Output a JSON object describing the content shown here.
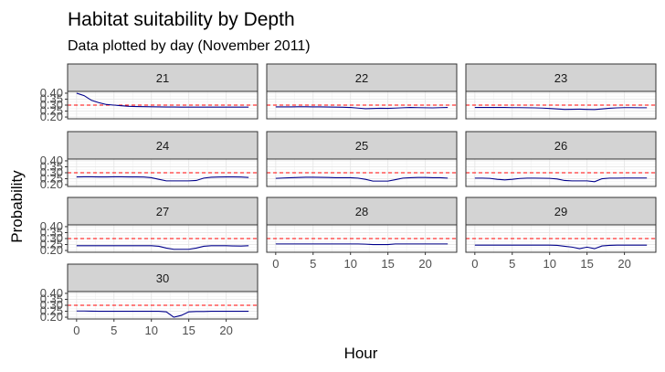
{
  "chart_data": {
    "type": "line",
    "title": "Habitat suitability by Depth",
    "subtitle": "Data plotted by day (November 2011)",
    "xlabel": "Hour",
    "ylabel": "Probability",
    "xlim": [
      -1.2,
      24.2
    ],
    "ylim": [
      0.185,
      0.415
    ],
    "x_ticks": [
      0,
      5,
      10,
      15,
      20
    ],
    "y_ticks": [
      0.2,
      0.25,
      0.3,
      0.35,
      0.4
    ],
    "y_tick_labels": [
      "0.20",
      "0.25",
      "0.30",
      "0.35",
      "0.40"
    ],
    "reference_line": {
      "y": 0.3,
      "style": "dashed",
      "color": "#ff0000"
    },
    "line_color": "#00008b",
    "strip_fill": "#d3d3d3",
    "grid": true,
    "x": [
      0,
      1,
      2,
      3,
      4,
      5,
      6,
      7,
      8,
      9,
      10,
      11,
      12,
      13,
      14,
      15,
      16,
      17,
      18,
      19,
      20,
      21,
      22,
      23
    ],
    "panels": [
      {
        "label": "21",
        "values": [
          0.4,
          0.38,
          0.34,
          0.32,
          0.305,
          0.3,
          0.295,
          0.29,
          0.288,
          0.287,
          0.286,
          0.285,
          0.284,
          0.284,
          0.283,
          0.283,
          0.283,
          0.283,
          0.283,
          0.283,
          0.283,
          0.283,
          0.283,
          0.283
        ]
      },
      {
        "label": "22",
        "values": [
          0.285,
          0.285,
          0.285,
          0.286,
          0.286,
          0.285,
          0.285,
          0.284,
          0.283,
          0.282,
          0.28,
          0.275,
          0.27,
          0.272,
          0.274,
          0.273,
          0.275,
          0.278,
          0.28,
          0.279,
          0.278,
          0.277,
          0.279,
          0.28
        ]
      },
      {
        "label": "23",
        "values": [
          0.28,
          0.28,
          0.28,
          0.28,
          0.28,
          0.279,
          0.279,
          0.278,
          0.277,
          0.275,
          0.272,
          0.268,
          0.264,
          0.265,
          0.266,
          0.264,
          0.263,
          0.268,
          0.274,
          0.277,
          0.279,
          0.279,
          0.278,
          0.278
        ]
      },
      {
        "label": "24",
        "values": [
          0.265,
          0.266,
          0.266,
          0.265,
          0.265,
          0.266,
          0.266,
          0.265,
          0.265,
          0.264,
          0.258,
          0.245,
          0.232,
          0.232,
          0.232,
          0.232,
          0.235,
          0.255,
          0.262,
          0.264,
          0.265,
          0.265,
          0.264,
          0.26
        ]
      },
      {
        "label": "25",
        "values": [
          0.253,
          0.256,
          0.258,
          0.26,
          0.262,
          0.262,
          0.261,
          0.26,
          0.258,
          0.258,
          0.258,
          0.255,
          0.245,
          0.23,
          0.23,
          0.23,
          0.242,
          0.255,
          0.258,
          0.26,
          0.26,
          0.258,
          0.258,
          0.255
        ]
      },
      {
        "label": "26",
        "values": [
          0.255,
          0.255,
          0.253,
          0.245,
          0.24,
          0.245,
          0.252,
          0.255,
          0.255,
          0.254,
          0.253,
          0.248,
          0.235,
          0.232,
          0.232,
          0.232,
          0.225,
          0.25,
          0.255,
          0.255,
          0.256,
          0.256,
          0.256,
          0.256
        ]
      },
      {
        "label": "27",
        "values": [
          0.24,
          0.24,
          0.24,
          0.24,
          0.24,
          0.24,
          0.24,
          0.24,
          0.24,
          0.24,
          0.24,
          0.235,
          0.22,
          0.21,
          0.21,
          0.21,
          0.22,
          0.235,
          0.24,
          0.24,
          0.24,
          0.238,
          0.237,
          0.24
        ]
      },
      {
        "label": "28",
        "values": [
          0.255,
          0.255,
          0.255,
          0.255,
          0.255,
          0.255,
          0.255,
          0.255,
          0.255,
          0.255,
          0.255,
          0.255,
          0.253,
          0.25,
          0.25,
          0.25,
          0.255,
          0.255,
          0.255,
          0.255,
          0.255,
          0.255,
          0.255,
          0.255
        ]
      },
      {
        "label": "29",
        "values": [
          0.245,
          0.245,
          0.245,
          0.245,
          0.245,
          0.245,
          0.245,
          0.245,
          0.245,
          0.245,
          0.245,
          0.243,
          0.235,
          0.228,
          0.215,
          0.228,
          0.215,
          0.238,
          0.243,
          0.245,
          0.245,
          0.245,
          0.245,
          0.245
        ]
      },
      {
        "label": "30",
        "values": [
          0.252,
          0.252,
          0.251,
          0.25,
          0.25,
          0.25,
          0.25,
          0.25,
          0.25,
          0.25,
          0.25,
          0.25,
          0.245,
          0.2,
          0.215,
          0.245,
          0.248,
          0.248,
          0.25,
          0.25,
          0.25,
          0.25,
          0.25,
          0.25
        ]
      }
    ]
  }
}
